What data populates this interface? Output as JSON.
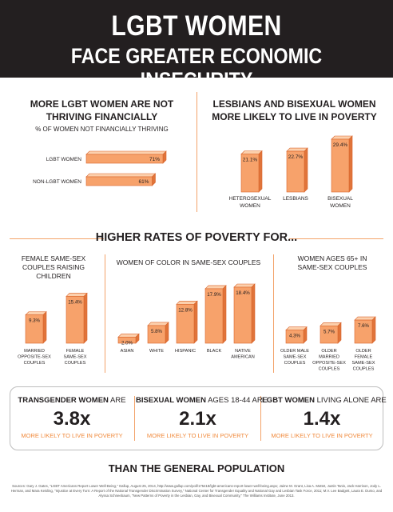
{
  "header": {
    "title_line1": "LGBT WOMEN",
    "title_line2": "FACE GREATER ECONOMIC INSECURITY"
  },
  "section1": {
    "title_line1": "MORE LGBT WOMEN ARE NOT",
    "title_line2": "THRIVING FINANCIALLY",
    "subtitle": "% OF WOMEN NOT FINANCIALLY THRIVING"
  },
  "section2": {
    "title_line1": "LESBIANS AND BISEXUAL WOMEN",
    "title_line2": "MORE LIKELY TO LIVE IN POVERTY"
  },
  "middle": {
    "title": "HIGHER RATES OF POVERTY FOR...",
    "left_title_line1": "FEMALE SAME-SEX",
    "left_title_line2": "COUPLES RAISING CHILDREN",
    "center_title": "WOMEN OF COLOR IN SAME-SEX COUPLES",
    "right_title_line1": "WOMEN AGES 65+ IN",
    "right_title_line2": "SAME-SEX COUPLES"
  },
  "stats": [
    {
      "bold": "TRANSGENDER WOMEN",
      "rest": " ARE",
      "value": "3.8x",
      "note": "MORE LIKELY TO LIVE IN POVERTY"
    },
    {
      "bold": "BISEXUAL WOMEN",
      "rest": " AGES 18-44 ARE",
      "value": "2.1x",
      "note": "MORE LIKELY TO LIVE IN POVERTY"
    },
    {
      "bold": "LGBT WOMEN",
      "rest": " LIVING ALONE ARE",
      "value": "1.4x",
      "note": "MORE LIKELY TO LIVE IN POVERTY"
    }
  ],
  "footer": {
    "than": "THAN THE GENERAL POPULATION",
    "sources": "Sources: Gary J. Gates, \"LGBT Americans Report Lower Well-Being,\" Gallup, August 25, 2014, http://www.gallup.com/poll/175418/lgbt-americans-report-lower-well-being.aspx; Jaime M. Grant, Lisa A. Mottet, Justin Tanis, Jack Harrison, Jody L. Herman, and Mara Keisling, \"Injustice at Every Turn: A Report of the National Transgender Discrimination Survey,\" National Center for Transgender Equality and National Gay and Lesbian Task Force, 2011; M.V. Lee Badgett, Laura E. Durso, and Alyssa Schneebaum, \"New Patterns of Poverty in the Lesbian, Gay, and Bisexual Community,\" The Williams Institute, June 2013."
  },
  "colors": {
    "bar_front": "#f7a26b",
    "bar_top": "#fcd0ad",
    "bar_side": "#e0743a",
    "bar_stroke": "#d9642b",
    "accent": "#f08a3c",
    "header_bg": "#231f20"
  },
  "chart_data": [
    {
      "type": "bar",
      "orientation": "horizontal",
      "categories": [
        "LGBT WOMEN",
        "NON-LGBT WOMEN"
      ],
      "values": [
        71,
        61
      ],
      "value_labels": [
        "71%",
        "61%"
      ],
      "xlim": [
        0,
        71
      ]
    },
    {
      "type": "bar",
      "categories": [
        "HETEROSEXUAL WOMEN",
        "LESBIANS",
        "BISEXUAL WOMEN"
      ],
      "values": [
        21.1,
        22.7,
        29.4
      ],
      "value_labels": [
        "21.1%",
        "22.7%",
        "29.4%"
      ],
      "ylim": [
        0,
        29.4
      ]
    },
    {
      "type": "bar",
      "categories": [
        "MARRIED OPPOSITE-SEX COUPLES",
        "FEMALE SAME-SEX COUPLES"
      ],
      "values": [
        9.3,
        15.4
      ],
      "value_labels": [
        "9.3%",
        "15.4%"
      ],
      "ylim": [
        0,
        18.4
      ]
    },
    {
      "type": "bar",
      "categories": [
        "ASIAN",
        "WHITE",
        "HISPANIC",
        "BLACK",
        "NATIVE AMERICAN"
      ],
      "values": [
        2.0,
        5.8,
        12.8,
        17.9,
        18.4
      ],
      "value_labels": [
        "2.0%",
        "5.8%",
        "12.8%",
        "17.9%",
        "18.4%"
      ],
      "ylim": [
        0,
        18.4
      ]
    },
    {
      "type": "bar",
      "categories": [
        "OLDER MALE SAME-SEX COUPLES",
        "OLDER MARRIED OPPOSITE-SEX COUPLES",
        "OLDER FEMALE SAME-SEX COUPLES"
      ],
      "values": [
        4.3,
        5.7,
        7.6
      ],
      "value_labels": [
        "4.3%",
        "5.7%",
        "7.6%"
      ],
      "ylim": [
        0,
        18.4
      ]
    }
  ]
}
